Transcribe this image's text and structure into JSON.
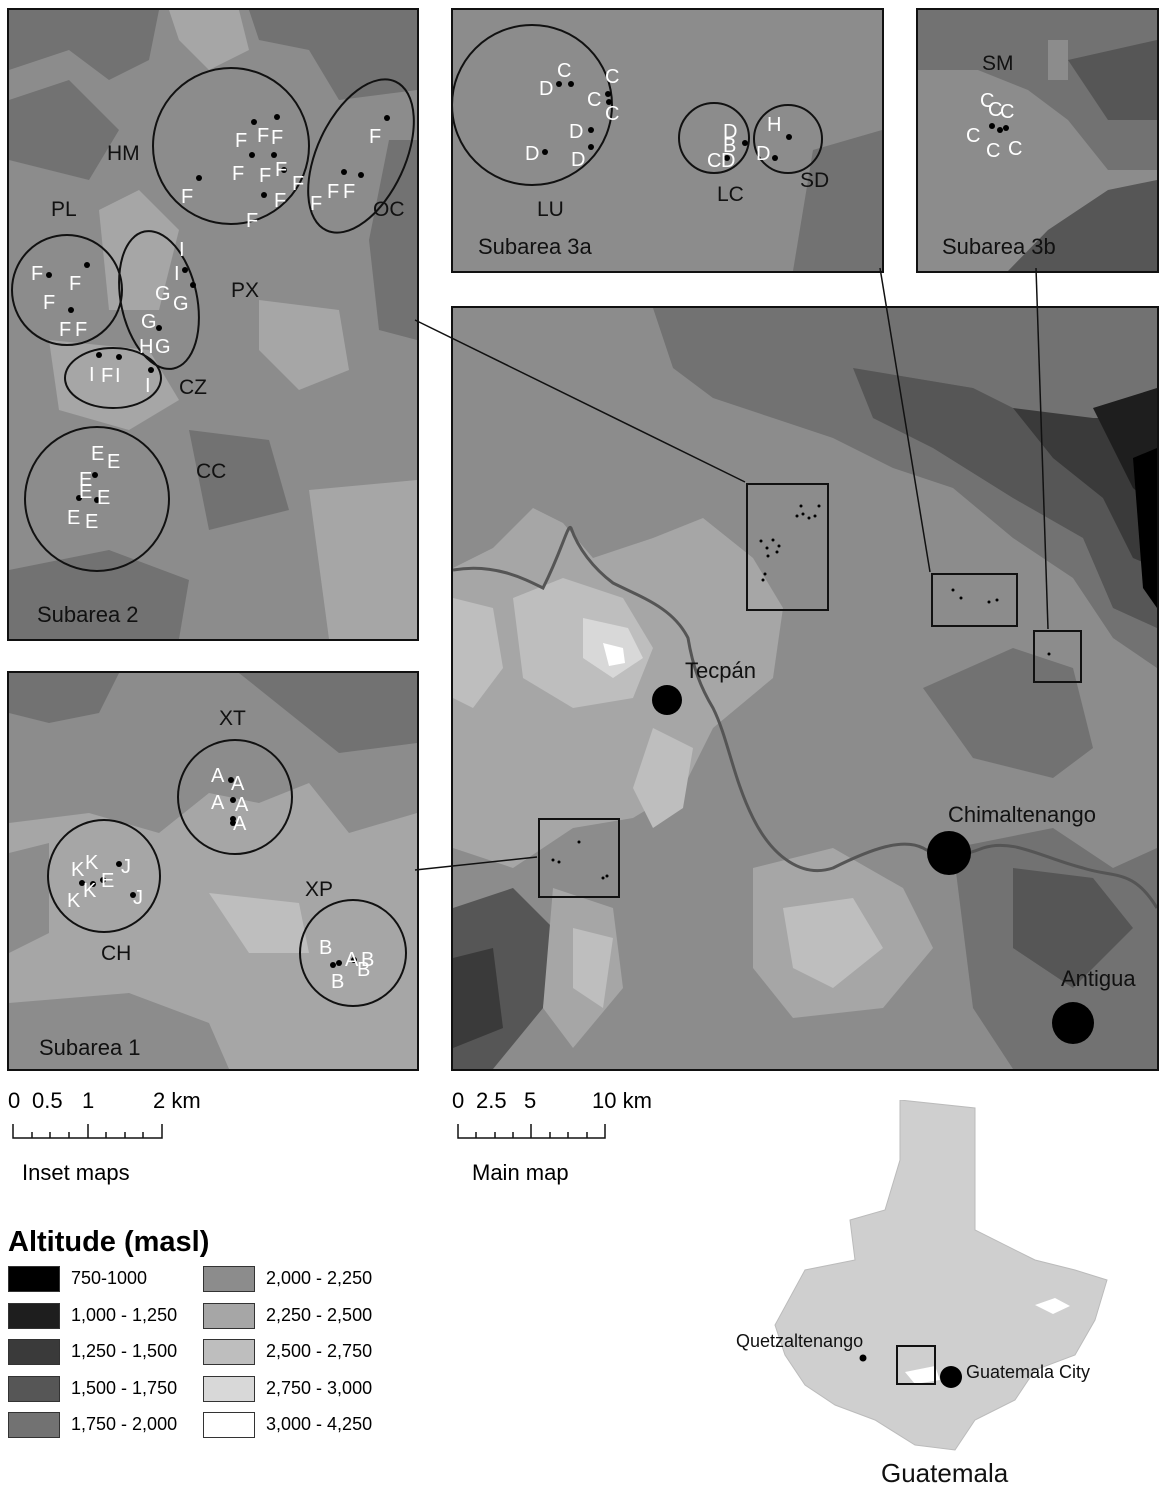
{
  "panels": {
    "subarea2": {
      "title": "Subarea 2",
      "clusters": [
        "HM",
        "OC",
        "PL",
        "PX",
        "CZ",
        "CC"
      ]
    },
    "subarea3a": {
      "title": "Subarea 3a",
      "clusters": [
        "LU",
        "LC",
        "SD"
      ]
    },
    "subarea3b": {
      "title": "Subarea 3b",
      "clusters": [
        "SM"
      ]
    },
    "subarea1": {
      "title": "Subarea 1",
      "clusters": [
        "XT",
        "CH",
        "XP"
      ]
    }
  },
  "main_map": {
    "cities": [
      {
        "name": "Tecpán"
      },
      {
        "name": "Chimaltenango"
      },
      {
        "name": "Antigua"
      }
    ]
  },
  "scales": {
    "inset": {
      "ticks": [
        "0",
        "0.5",
        "1",
        "2 km"
      ],
      "label": "Inset maps"
    },
    "main": {
      "ticks": [
        "0",
        "2.5",
        "5",
        "10 km"
      ],
      "label": "Main map"
    }
  },
  "legend": {
    "title": "Altitude (masl)",
    "classes": [
      {
        "range": "750-1000",
        "color": "#000000"
      },
      {
        "range": "1,000 - 1,250",
        "color": "#1e1e1e"
      },
      {
        "range": "1,250 - 1,500",
        "color": "#3a3a3a"
      },
      {
        "range": "1,500 - 1,750",
        "color": "#565656"
      },
      {
        "range": "1,750 - 2,000",
        "color": "#727272"
      },
      {
        "range": "2,000 - 2,250",
        "color": "#8c8c8c"
      },
      {
        "range": "2,250 - 2,500",
        "color": "#a6a6a6"
      },
      {
        "range": "2,500 - 2,750",
        "color": "#bebebe"
      },
      {
        "range": "2,750 - 3,000",
        "color": "#d8d8d8"
      },
      {
        "range": "3,000 - 4,250",
        "color": "#ffffff"
      }
    ]
  },
  "country_map": {
    "country": "Guatemala",
    "cities": [
      "Quetzaltenango",
      "Guatemala City"
    ]
  }
}
